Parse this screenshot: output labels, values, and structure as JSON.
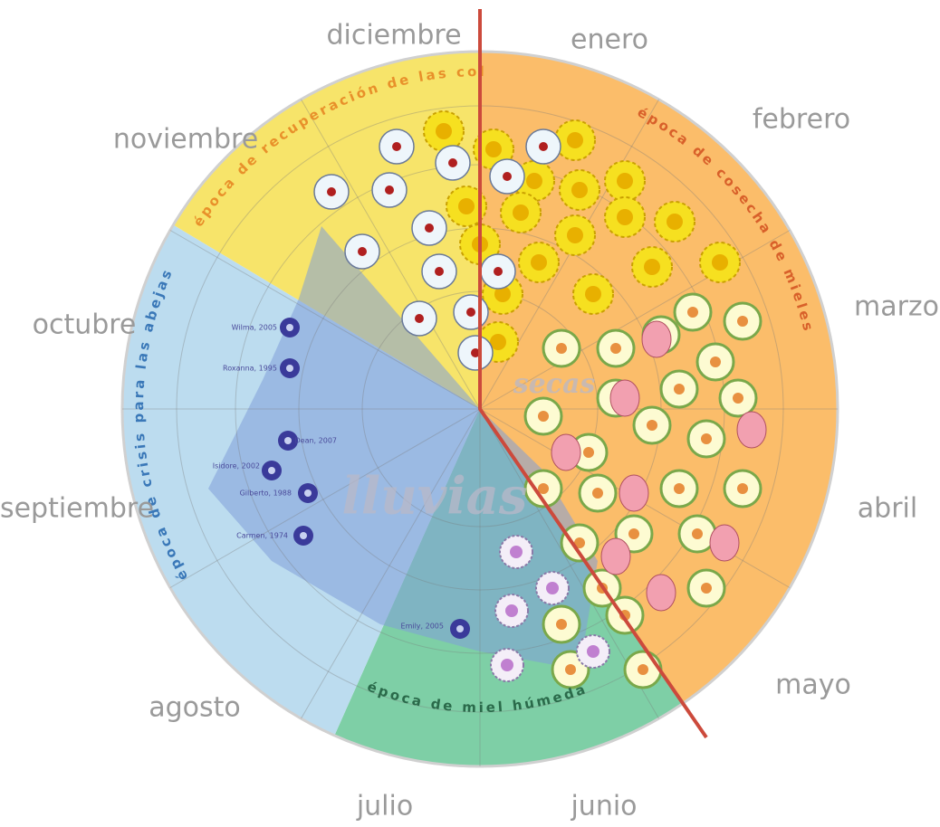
{
  "months": [
    "enero",
    "febrero",
    "marzo",
    "abril",
    "mayo",
    "junio",
    "julio",
    "agosto",
    "septiembre",
    "octubre",
    "noviembre",
    "diciembre"
  ],
  "seasons": {
    "recovery": "época de recuperación de las colmenas",
    "harvest": "época de cosecha de mieles",
    "crisis": "época de crisis para las abejas",
    "wet_honey": "época de miel húmeda"
  },
  "climate": {
    "rain": "lluvias",
    "dry": "secas"
  },
  "hurricanes": [
    "Wilma, 2005",
    "Roxanna, 1995",
    "Dean, 2007",
    "Isidore, 2002",
    "Gilberto, 1988",
    "Carmen, 1974",
    "Emily, 2005"
  ]
}
